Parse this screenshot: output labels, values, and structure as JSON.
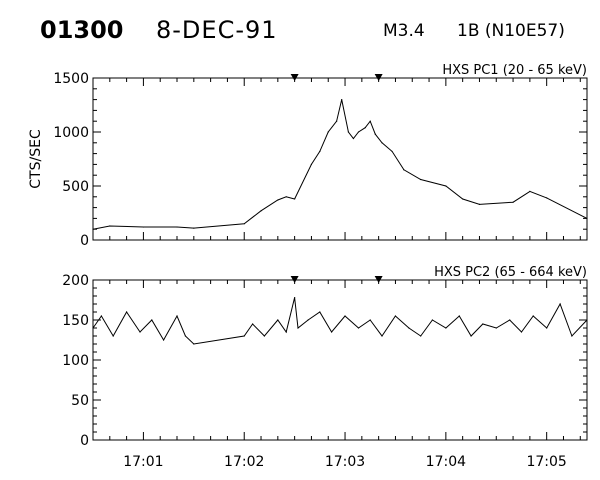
{
  "header": {
    "event_id": "01300",
    "date": "8-DEC-91",
    "goes_class": "M3.4",
    "location": "1B (N10E57)"
  },
  "chart_data": [
    {
      "type": "line",
      "title": "HXS PC1 (20 - 65 keV)",
      "ylabel": "CTS/SEC",
      "xlabel": "",
      "x_range": [
        "17:00:30",
        "17:05:24"
      ],
      "ylim": [
        0,
        1500
      ],
      "yticks": [
        0,
        500,
        1000,
        1500
      ],
      "xticks": [
        "17:01",
        "17:02",
        "17:03",
        "17:04",
        "17:05"
      ],
      "markers": [
        "17:02:30",
        "17:03:20"
      ],
      "series": [
        {
          "x": [
            "17:00:30",
            "17:00:40",
            "17:01:00",
            "17:01:20",
            "17:01:30",
            "17:02:00",
            "17:02:10",
            "17:02:20",
            "17:02:25",
            "17:02:30",
            "17:02:40",
            "17:02:45",
            "17:02:50",
            "17:02:55",
            "17:02:58",
            "17:03:02",
            "17:03:05",
            "17:03:08",
            "17:03:12",
            "17:03:15",
            "17:03:18",
            "17:03:22",
            "17:03:28",
            "17:03:35",
            "17:03:45",
            "17:04:00",
            "17:04:10",
            "17:04:20",
            "17:04:40",
            "17:04:50",
            "17:05:00",
            "17:05:24"
          ],
          "values": [
            100,
            130,
            120,
            120,
            110,
            150,
            270,
            370,
            400,
            380,
            700,
            820,
            1000,
            1100,
            1300,
            1000,
            940,
            1000,
            1040,
            1100,
            980,
            900,
            820,
            650,
            560,
            500,
            380,
            330,
            350,
            450,
            390,
            200
          ]
        }
      ]
    },
    {
      "type": "line",
      "title": "HXS PC2 (65 - 664 keV)",
      "ylabel": "",
      "xlabel": "",
      "x_range": [
        "17:00:30",
        "17:05:24"
      ],
      "ylim": [
        0,
        200
      ],
      "yticks": [
        0,
        50,
        100,
        150,
        200
      ],
      "xticks": [
        "17:01",
        "17:02",
        "17:03",
        "17:04",
        "17:05"
      ],
      "markers": [
        "17:02:30",
        "17:03:20"
      ],
      "series": [
        {
          "x": [
            "17:00:30",
            "17:00:35",
            "17:00:42",
            "17:00:50",
            "17:00:58",
            "17:01:05",
            "17:01:12",
            "17:01:20",
            "17:01:25",
            "17:01:30",
            "17:02:00",
            "17:02:05",
            "17:02:12",
            "17:02:20",
            "17:02:25",
            "17:02:30",
            "17:02:32",
            "17:02:38",
            "17:02:45",
            "17:02:52",
            "17:03:00",
            "17:03:08",
            "17:03:15",
            "17:03:22",
            "17:03:30",
            "17:03:38",
            "17:03:45",
            "17:03:52",
            "17:04:00",
            "17:04:08",
            "17:04:15",
            "17:04:22",
            "17:04:30",
            "17:04:38",
            "17:04:45",
            "17:04:52",
            "17:05:00",
            "17:05:08",
            "17:05:15",
            "17:05:24"
          ],
          "values": [
            140,
            155,
            130,
            160,
            135,
            150,
            125,
            155,
            130,
            120,
            130,
            145,
            130,
            150,
            135,
            178,
            140,
            150,
            160,
            135,
            155,
            140,
            150,
            130,
            155,
            140,
            130,
            150,
            140,
            155,
            130,
            145,
            140,
            150,
            135,
            155,
            140,
            170,
            130,
            150
          ]
        }
      ]
    }
  ]
}
